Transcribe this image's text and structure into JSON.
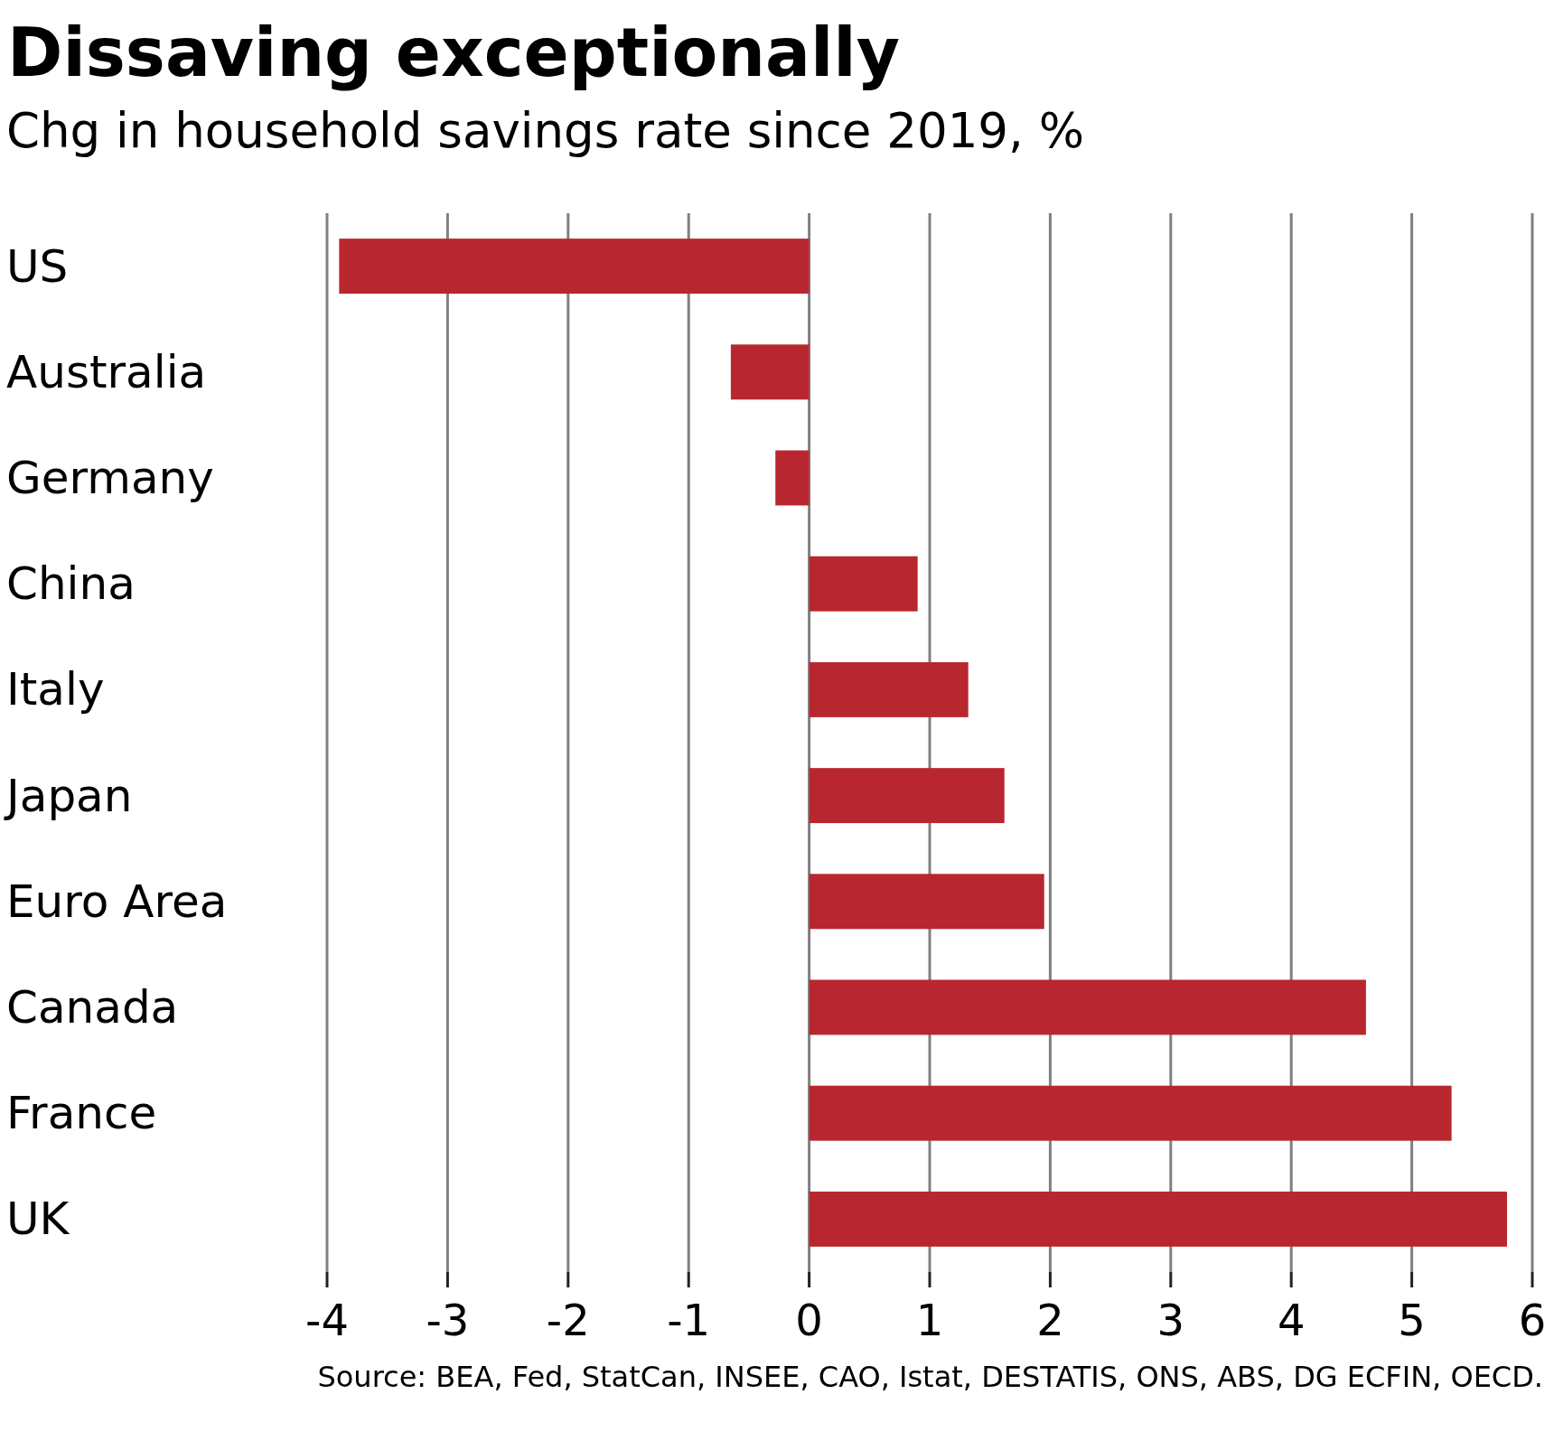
{
  "chart_data": {
    "type": "bar",
    "orientation": "horizontal",
    "title": "Dissaving exceptionally",
    "subtitle": "Chg in household savings rate since 2019, %",
    "categories": [
      "US",
      "Australia",
      "Germany",
      "China",
      "Italy",
      "Japan",
      "Euro Area",
      "Canada",
      "France",
      "UK"
    ],
    "values": [
      -3.9,
      -0.65,
      -0.28,
      0.9,
      1.32,
      1.62,
      1.95,
      4.62,
      5.33,
      5.79
    ],
    "color": "#b8272f",
    "xlim": [
      -4,
      6
    ],
    "xticks": [
      -4,
      -3,
      -2,
      -1,
      0,
      1,
      2,
      3,
      4,
      5,
      6
    ],
    "grid": "x",
    "annotations": [
      "Source: BEA, Fed, StatCan, INSEE, CAO, Istat, DESTATIS, ONS, ABS, DG ECFIN, OECD."
    ]
  }
}
